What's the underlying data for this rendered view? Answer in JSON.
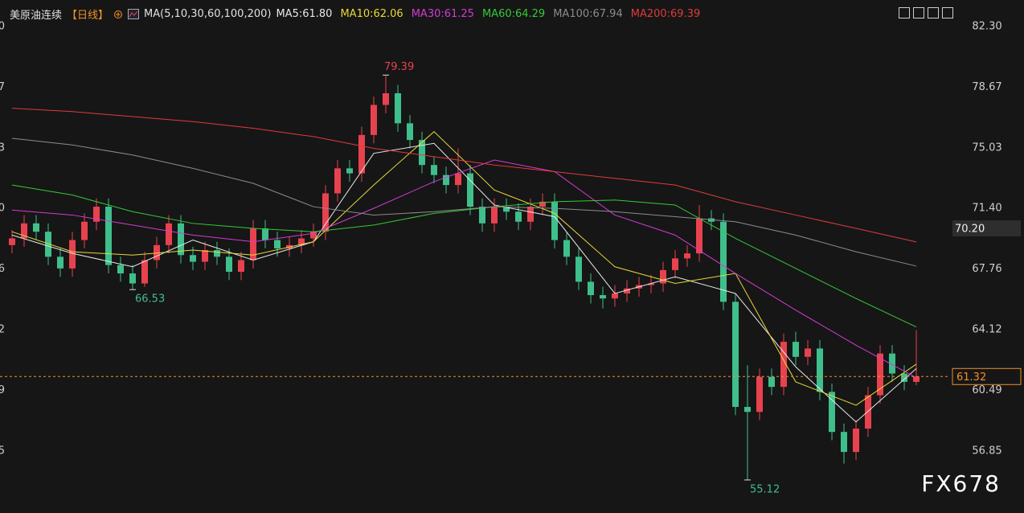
{
  "header": {
    "symbol": "美原油连续",
    "period": "【日线】",
    "indicator": "MA(5,10,30,60,100,200)"
  },
  "watermark": "FX678",
  "chart_data": {
    "type": "candlestick",
    "ylim": [
      53.14,
      83.89
    ],
    "yticks": [
      {
        "value": 82.3,
        "label": "82.30"
      },
      {
        "value": 78.67,
        "label": "78.67"
      },
      {
        "value": 75.03,
        "label": "75.03"
      },
      {
        "value": 71.4,
        "label": "71.40"
      },
      {
        "value": 67.76,
        "label": "67.76"
      },
      {
        "value": 64.12,
        "label": "64.12"
      },
      {
        "value": 60.49,
        "label": "60.49"
      },
      {
        "value": 56.85,
        "label": "56.85"
      }
    ],
    "up_color": "#e8424f",
    "down_color": "#3fbf8c",
    "last_color": "#f0902a",
    "open": [
      69.2,
      69.6,
      70.5,
      70.0,
      68.5,
      67.8,
      69.5,
      70.6,
      71.5,
      68.0,
      67.5,
      66.9,
      68.3,
      69.2,
      70.5,
      68.6,
      68.2,
      68.9,
      68.5,
      67.6,
      68.3,
      70.2,
      69.5,
      69.0,
      69.2,
      69.6,
      70.0,
      72.3,
      73.8,
      73.5,
      75.8,
      77.6,
      78.3,
      76.5,
      75.5,
      74.0,
      73.4,
      72.8,
      73.5,
      71.5,
      70.5,
      71.5,
      71.2,
      70.6,
      71.5,
      71.8,
      69.5,
      68.5,
      67.0,
      66.2,
      66.0,
      66.3,
      66.6,
      66.8,
      66.9,
      67.7,
      68.4,
      68.7,
      70.8,
      70.6,
      65.8,
      59.5,
      59.2,
      61.3,
      60.7,
      63.4,
      62.5,
      63.0,
      60.4,
      58.0,
      56.8,
      58.2,
      60.2,
      62.7,
      61.5,
      61.0
    ],
    "high": [
      70.1,
      71.0,
      71.0,
      70.5,
      69.0,
      70.0,
      71.1,
      72.0,
      72.0,
      68.5,
      68.0,
      68.8,
      69.7,
      71.0,
      71.0,
      69.1,
      69.4,
      69.4,
      69.0,
      68.8,
      70.7,
      70.7,
      70.0,
      69.7,
      70.1,
      70.5,
      72.8,
      74.3,
      74.3,
      76.3,
      78.1,
      79.39,
      78.8,
      77.0,
      76.0,
      74.5,
      73.9,
      75.0,
      74.0,
      72.0,
      72.0,
      72.0,
      71.7,
      72.0,
      72.3,
      72.3,
      70.0,
      69.0,
      67.5,
      66.7,
      66.8,
      67.1,
      67.3,
      67.4,
      68.2,
      68.9,
      69.2,
      71.6,
      71.3,
      71.1,
      66.3,
      62.0,
      61.8,
      61.8,
      63.9,
      64.0,
      63.5,
      63.5,
      60.9,
      58.5,
      58.7,
      60.7,
      63.2,
      63.2,
      62.0,
      64.1
    ],
    "low": [
      68.7,
      69.1,
      69.5,
      68.0,
      67.3,
      67.3,
      69.0,
      70.1,
      67.5,
      67.0,
      66.53,
      66.7,
      67.8,
      68.7,
      68.1,
      67.7,
      67.7,
      68.0,
      67.1,
      67.1,
      67.8,
      69.0,
      68.5,
      68.5,
      68.7,
      69.1,
      69.5,
      71.8,
      73.0,
      73.0,
      75.3,
      77.1,
      76.0,
      75.0,
      73.5,
      72.9,
      72.3,
      72.3,
      71.0,
      70.0,
      70.0,
      70.7,
      70.1,
      70.1,
      71.0,
      69.0,
      68.0,
      66.5,
      65.7,
      65.4,
      65.5,
      65.8,
      66.1,
      66.3,
      66.4,
      67.2,
      67.9,
      68.2,
      70.1,
      65.3,
      59.0,
      55.12,
      58.7,
      60.2,
      60.2,
      62.0,
      62.0,
      59.9,
      57.5,
      56.1,
      56.3,
      57.7,
      59.7,
      61.0,
      60.5,
      60.8
    ],
    "close": [
      69.6,
      70.5,
      70.0,
      68.5,
      67.8,
      69.5,
      70.6,
      71.5,
      68.0,
      67.5,
      66.9,
      68.3,
      69.2,
      70.5,
      68.6,
      68.2,
      68.9,
      68.5,
      67.6,
      68.3,
      70.2,
      69.5,
      69.0,
      69.2,
      69.6,
      70.0,
      72.3,
      73.8,
      73.5,
      75.8,
      77.6,
      78.3,
      76.5,
      75.5,
      74.0,
      73.4,
      72.8,
      73.5,
      71.5,
      70.5,
      71.5,
      71.2,
      70.6,
      71.5,
      71.8,
      69.5,
      68.5,
      67.0,
      66.2,
      66.0,
      66.3,
      66.6,
      66.8,
      66.9,
      67.7,
      68.4,
      68.7,
      70.8,
      70.6,
      65.8,
      59.5,
      59.2,
      61.3,
      60.7,
      63.4,
      62.5,
      63.0,
      60.4,
      58.0,
      56.8,
      58.2,
      60.2,
      62.7,
      61.5,
      61.0,
      61.32
    ],
    "ma_x": [
      0,
      5,
      10,
      15,
      20,
      25,
      30,
      35,
      40,
      45,
      50,
      55,
      60,
      65,
      70,
      75
    ],
    "series": [
      {
        "name": "MA5:61.80",
        "color": "#e8e8e8",
        "values": [
          69.8,
          68.7,
          67.9,
          69.5,
          68.3,
          69.4,
          74.7,
          75.3,
          71.6,
          70.9,
          66.3,
          67.3,
          66.3,
          61.9,
          58.6,
          61.8
        ]
      },
      {
        "name": "MA10:62.06",
        "color": "#e8d83a",
        "values": [
          70.0,
          68.8,
          68.6,
          68.9,
          68.6,
          69.4,
          72.8,
          76.0,
          72.5,
          71.1,
          67.9,
          66.9,
          67.5,
          61.0,
          59.6,
          62.06
        ]
      },
      {
        "name": "MA30:61.25",
        "color": "#d43ad4",
        "values": [
          71.3,
          71.0,
          70.4,
          69.8,
          69.4,
          69.9,
          71.4,
          73.0,
          74.3,
          73.6,
          71.0,
          69.8,
          67.5,
          65.3,
          63.2,
          61.25
        ]
      },
      {
        "name": "MA60:64.29",
        "color": "#36c936",
        "values": [
          72.8,
          72.2,
          71.2,
          70.5,
          70.2,
          70.0,
          70.4,
          71.1,
          71.5,
          71.8,
          71.9,
          71.6,
          69.6,
          67.8,
          66.0,
          64.29
        ]
      },
      {
        "name": "MA100:67.94",
        "color": "#8c8c8c",
        "values": [
          75.6,
          75.2,
          74.6,
          73.8,
          72.9,
          71.5,
          71.0,
          71.2,
          71.5,
          71.4,
          71.2,
          70.9,
          70.6,
          69.8,
          68.8,
          67.94
        ]
      },
      {
        "name": "MA200:69.39",
        "color": "#e03a3a",
        "values": [
          77.4,
          77.2,
          76.9,
          76.6,
          76.2,
          75.7,
          75.0,
          74.5,
          74.0,
          73.6,
          73.2,
          72.8,
          71.8,
          71.0,
          70.2,
          69.39
        ]
      }
    ],
    "marker_label": {
      "value": 70.2,
      "label": "70.20"
    }
  }
}
